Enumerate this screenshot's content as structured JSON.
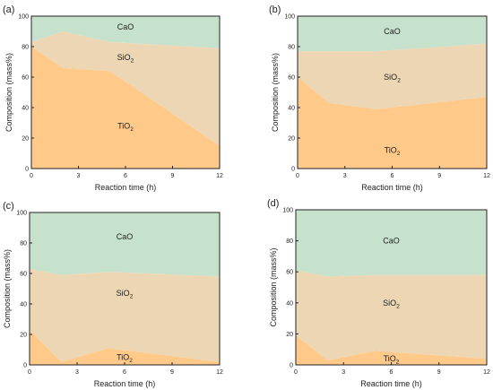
{
  "colors": {
    "TiO2": "#ffc98a",
    "SiO2": "#ecd6b4",
    "CaO": "#c7e2cc"
  },
  "chart_data": [
    {
      "panel": "(a)",
      "type": "area",
      "x": [
        0,
        2,
        5,
        12
      ],
      "series": [
        {
          "name": "TiO2",
          "values": [
            80,
            66,
            64,
            15
          ]
        },
        {
          "name": "SiO2",
          "values": [
            3,
            24,
            19,
            64
          ]
        },
        {
          "name": "CaO",
          "values": [
            17,
            10,
            17,
            21
          ]
        }
      ],
      "labels": {
        "CaO": "CaO",
        "SiO2": "SiO2",
        "TiO2": "TiO2"
      },
      "label_pos": {
        "CaO": [
          6,
          93
        ],
        "SiO2": [
          6,
          73
        ],
        "TiO2": [
          6,
          28
        ]
      },
      "xlabel": "Reaction time (h)",
      "ylabel": "Composition (mass%)",
      "xlim": [
        0,
        12
      ],
      "ylim": [
        0,
        100
      ],
      "xticks": [
        0,
        3,
        6,
        9,
        12
      ],
      "yticks": [
        0,
        20,
        40,
        60,
        80,
        100
      ]
    },
    {
      "panel": "(b)",
      "type": "area",
      "x": [
        0,
        2,
        5,
        12
      ],
      "series": [
        {
          "name": "TiO2",
          "values": [
            60,
            43,
            39,
            47
          ]
        },
        {
          "name": "SiO2",
          "values": [
            17,
            34,
            38,
            35
          ]
        },
        {
          "name": "CaO",
          "values": [
            23,
            23,
            23,
            18
          ]
        }
      ],
      "labels": {
        "CaO": "CaO",
        "SiO2": "SiO2",
        "TiO2": "TiO2"
      },
      "label_pos": {
        "CaO": [
          6,
          90
        ],
        "SiO2": [
          6,
          60
        ],
        "TiO2": [
          6,
          12
        ]
      },
      "xlabel": "Reaction time (h)",
      "ylabel": "Composition (mass%)",
      "xlim": [
        0,
        12
      ],
      "ylim": [
        0,
        100
      ],
      "xticks": [
        0,
        3,
        6,
        9,
        12
      ],
      "yticks": [
        0,
        20,
        40,
        60,
        80,
        100
      ]
    },
    {
      "panel": "(c)",
      "type": "area",
      "x": [
        0,
        2,
        5,
        12
      ],
      "series": [
        {
          "name": "TiO2",
          "values": [
            23,
            2,
            11,
            2
          ]
        },
        {
          "name": "SiO2",
          "values": [
            40,
            57,
            50,
            56
          ]
        },
        {
          "name": "CaO",
          "values": [
            37,
            41,
            39,
            42
          ]
        }
      ],
      "labels": {
        "CaO": "CaO",
        "SiO2": "SiO2",
        "TiO2": "TiO2"
      },
      "label_pos": {
        "CaO": [
          6,
          84
        ],
        "SiO2": [
          6,
          47
        ],
        "TiO2": [
          6,
          5
        ]
      },
      "xlabel": "Reaction time (h)",
      "ylabel": "Composition (mass%)",
      "xlim": [
        0,
        12
      ],
      "ylim": [
        0,
        100
      ],
      "xticks": [
        0,
        3,
        6,
        9,
        12
      ],
      "yticks": [
        0,
        20,
        40,
        60,
        80,
        100
      ]
    },
    {
      "panel": "(d)",
      "type": "area",
      "x": [
        0,
        2,
        5,
        12
      ],
      "series": [
        {
          "name": "TiO2",
          "values": [
            19,
            3,
            9,
            4
          ]
        },
        {
          "name": "SiO2",
          "values": [
            42,
            54,
            49,
            54
          ]
        },
        {
          "name": "CaO",
          "values": [
            39,
            43,
            42,
            42
          ]
        }
      ],
      "labels": {
        "CaO": "CaO",
        "SiO2": "SiO2",
        "TiO2": "TiO2"
      },
      "label_pos": {
        "CaO": [
          6,
          80
        ],
        "SiO2": [
          6,
          40
        ],
        "TiO2": [
          6,
          4
        ]
      },
      "xlabel": "Reaction time (h)",
      "ylabel": "Composition (mass%)",
      "xlim": [
        0,
        12
      ],
      "ylim": [
        0,
        100
      ],
      "xticks": [
        0,
        3,
        6,
        9,
        12
      ],
      "yticks": [
        0,
        20,
        40,
        60,
        80,
        100
      ]
    }
  ]
}
